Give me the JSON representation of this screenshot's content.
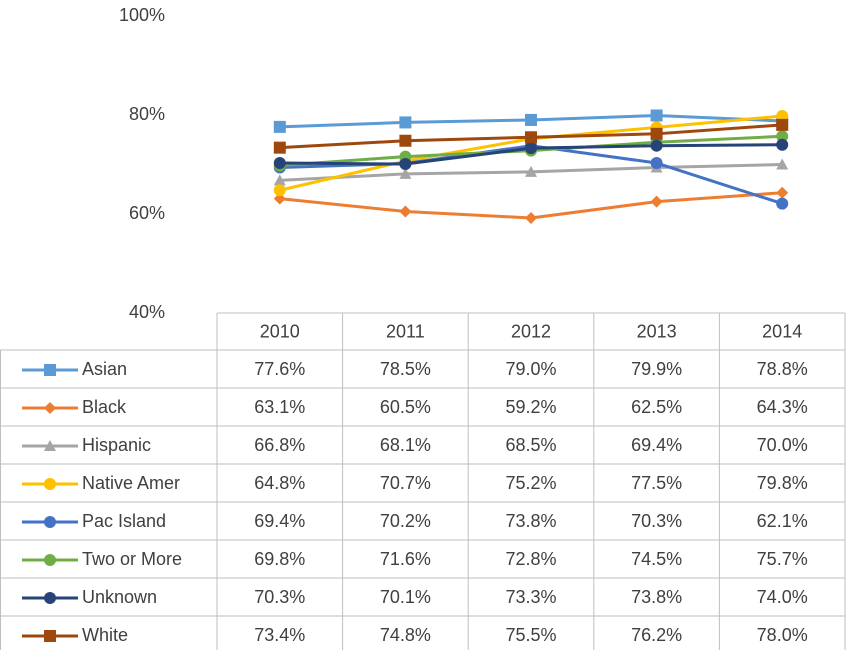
{
  "chart_data": {
    "type": "line",
    "categories": [
      "2010",
      "2011",
      "2012",
      "2013",
      "2014"
    ],
    "ylim": [
      40,
      100
    ],
    "yticks": [
      {
        "value": 40,
        "label": "40%"
      },
      {
        "value": 60,
        "label": "60%"
      },
      {
        "value": 80,
        "label": "80%"
      },
      {
        "value": 100,
        "label": "100%"
      }
    ],
    "series": [
      {
        "name": "Asian",
        "color": "#5b9bd5",
        "marker": "square",
        "values": [
          77.6,
          78.5,
          79.0,
          79.9,
          78.8
        ],
        "value_labels": [
          "77.6%",
          "78.5%",
          "79.0%",
          "79.9%",
          "78.8%"
        ]
      },
      {
        "name": "Black",
        "color": "#ed7d31",
        "marker": "diamond",
        "values": [
          63.1,
          60.5,
          59.2,
          62.5,
          64.3
        ],
        "value_labels": [
          "63.1%",
          "60.5%",
          "59.2%",
          "62.5%",
          "64.3%"
        ]
      },
      {
        "name": "Hispanic",
        "color": "#a5a5a5",
        "marker": "triangle",
        "values": [
          66.8,
          68.1,
          68.5,
          69.4,
          70.0
        ],
        "value_labels": [
          "66.8%",
          "68.1%",
          "68.5%",
          "69.4%",
          "70.0%"
        ]
      },
      {
        "name": "Native Amer",
        "color": "#ffc000",
        "marker": "circle",
        "values": [
          64.8,
          70.7,
          75.2,
          77.5,
          79.8
        ],
        "value_labels": [
          "64.8%",
          "70.7%",
          "75.2%",
          "77.5%",
          "79.8%"
        ]
      },
      {
        "name": "Pac Island",
        "color": "#4472c4",
        "marker": "circle",
        "values": [
          69.4,
          70.2,
          73.8,
          70.3,
          62.1
        ],
        "value_labels": [
          "69.4%",
          "70.2%",
          "73.8%",
          "70.3%",
          "62.1%"
        ]
      },
      {
        "name": "Two or More",
        "color": "#70ad47",
        "marker": "circle",
        "values": [
          69.8,
          71.6,
          72.8,
          74.5,
          75.7
        ],
        "value_labels": [
          "69.8%",
          "71.6%",
          "72.8%",
          "74.5%",
          "75.7%"
        ]
      },
      {
        "name": "Unknown",
        "color": "#264478",
        "marker": "circle",
        "values": [
          70.3,
          70.1,
          73.3,
          73.8,
          74.0
        ],
        "value_labels": [
          "70.3%",
          "70.1%",
          "73.3%",
          "73.8%",
          "74.0%"
        ]
      },
      {
        "name": "White",
        "color": "#9e480e",
        "marker": "square",
        "values": [
          73.4,
          74.8,
          75.5,
          76.2,
          78.0
        ],
        "value_labels": [
          "73.4%",
          "74.8%",
          "75.5%",
          "76.2%",
          "78.0%"
        ]
      }
    ]
  }
}
